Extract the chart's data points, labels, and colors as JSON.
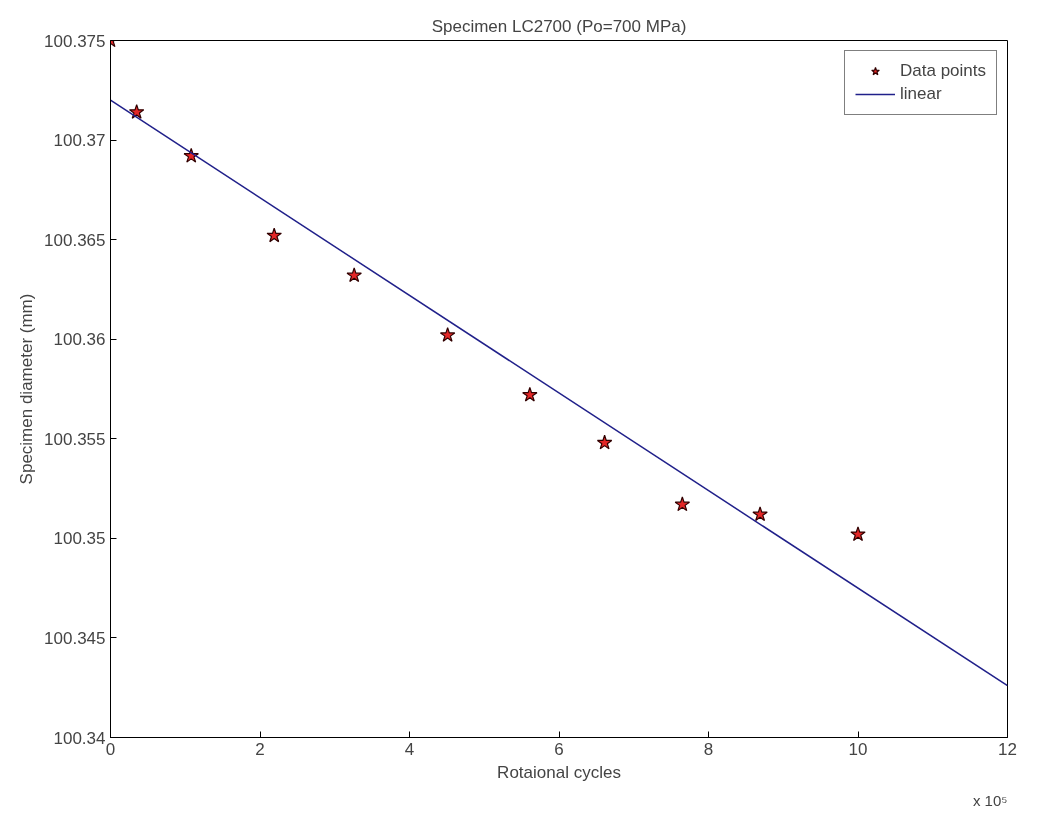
{
  "chart_data": {
    "type": "scatter",
    "title": "Specimen LC2700 (Po=700 MPa)",
    "xlabel": "Rotaional cycles",
    "ylabel": "Specimen diameter (mm)",
    "annotations": [
      "x 10⁵"
    ],
    "xlim": [
      0,
      12
    ],
    "xticks": [
      0,
      2,
      4,
      6,
      8,
      10,
      12
    ],
    "ylim": [
      100.34,
      100.375
    ],
    "yticks": [
      100.34,
      100.345,
      100.35,
      100.355,
      100.36,
      100.365,
      100.37,
      100.375
    ],
    "grid": false,
    "legend": "top right",
    "series": [
      {
        "name": "Data points",
        "marker": "star",
        "color": "#e01010",
        "x": [
          0,
          0.35,
          1.08,
          2.19,
          3.26,
          4.51,
          5.61,
          6.61,
          7.65,
          8.69,
          10.0
        ],
        "values": [
          100.375,
          100.3714,
          100.3692,
          100.3652,
          100.3632,
          100.3602,
          100.3572,
          100.3548,
          100.3517,
          100.3512,
          100.3502
        ]
      },
      {
        "name": "linear",
        "type": "line",
        "marker": "none",
        "line_style": "solid",
        "color": "#20208a",
        "x": [
          0,
          12
        ],
        "values": [
          100.372,
          100.3426
        ]
      }
    ]
  }
}
